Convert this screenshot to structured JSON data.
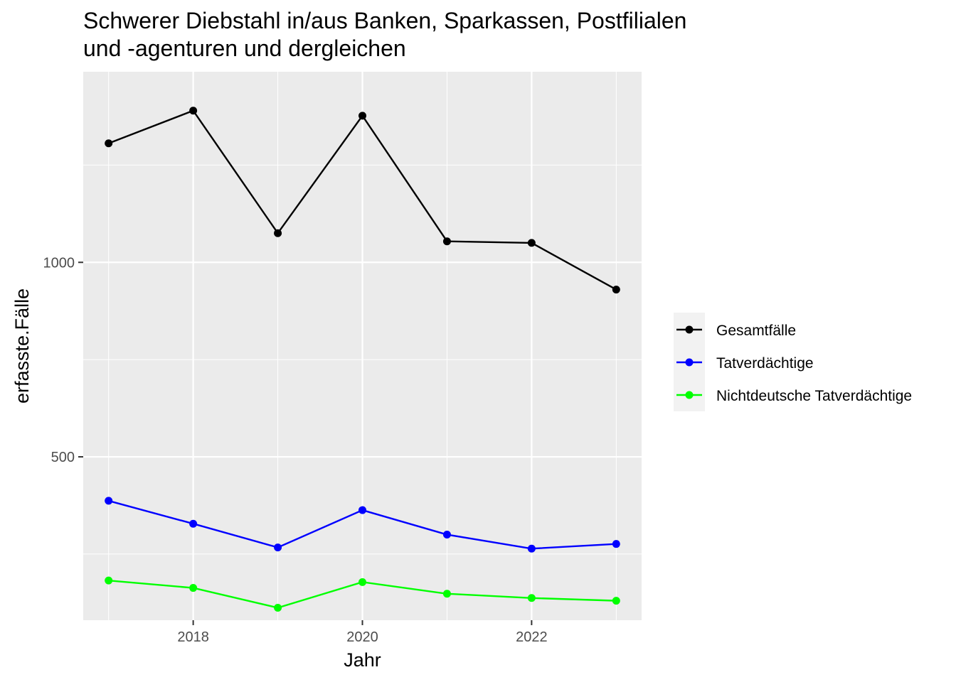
{
  "chart_data": {
    "type": "line",
    "title_lines": [
      "Schwerer Diebstahl in/aus Banken, Sparkassen, Postfilialen",
      "und -agenturen und dergleichen"
    ],
    "xlabel": "Jahr",
    "ylabel": "erfasste.Fälle",
    "x": [
      2017,
      2018,
      2019,
      2020,
      2021,
      2022,
      2023
    ],
    "xlim": [
      2016.7,
      2023.3
    ],
    "ylim": [
      80,
      1490
    ],
    "x_ticks": [
      2018,
      2020,
      2022
    ],
    "y_ticks": [
      500,
      1000
    ],
    "grid": true,
    "legend_position": "right",
    "series": [
      {
        "name": "Gesamtfälle",
        "color": "#000000",
        "values": [
          1306,
          1390,
          1075,
          1377,
          1054,
          1050,
          930
        ]
      },
      {
        "name": "Tatverdächtige",
        "color": "#0000ff",
        "values": [
          387,
          328,
          267,
          363,
          300,
          264,
          276
        ]
      },
      {
        "name": "Nichtdeutsche Tatverdächtige",
        "color": "#00ff00",
        "values": [
          182,
          163,
          112,
          178,
          148,
          137,
          130
        ]
      }
    ]
  }
}
